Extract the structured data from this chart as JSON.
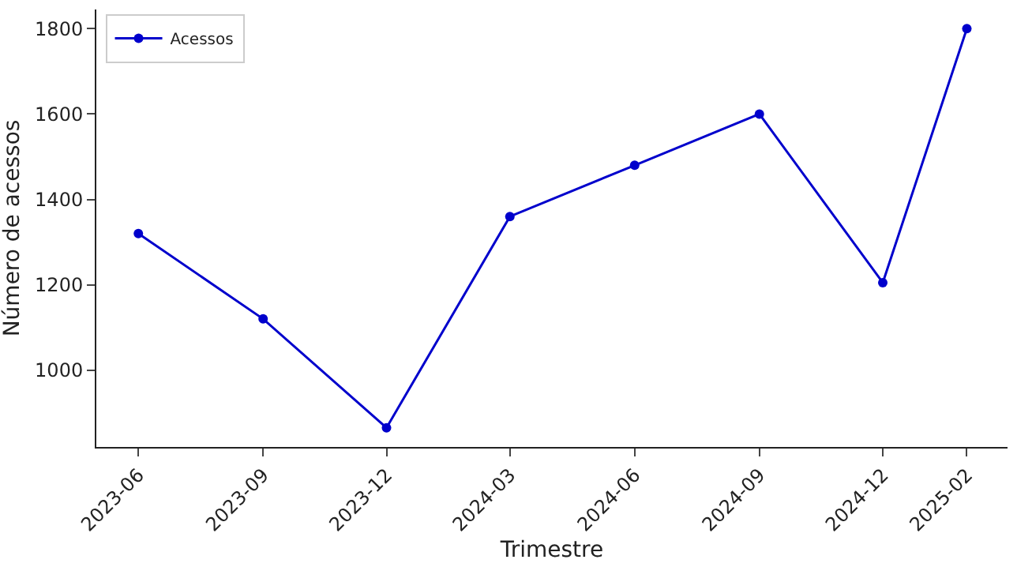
{
  "chart_data": {
    "type": "line",
    "xlabel": "Trimestre",
    "ylabel": "Número de acessos",
    "x": [
      "2023-06",
      "2023-09",
      "2023-12",
      "2024-03",
      "2024-06",
      "2024-09",
      "2024-12",
      "2025-02"
    ],
    "series": [
      {
        "name": "Acessos",
        "color": "#0000cc",
        "values": [
          1320,
          1120,
          865,
          1360,
          1480,
          1600,
          1205,
          1800
        ]
      }
    ],
    "xlim": [
      "2023-05-01",
      "2025-03-03"
    ],
    "xticks": [
      "2023-06",
      "2023-09",
      "2023-12",
      "2024-03",
      "2024-06",
      "2024-09",
      "2024-12",
      "2025-02"
    ],
    "ylim": [
      820,
      1845
    ],
    "yticks": [
      1000,
      1200,
      1400,
      1600,
      1800
    ],
    "legend": "top left",
    "marker": "circle",
    "line_style": "solid"
  }
}
